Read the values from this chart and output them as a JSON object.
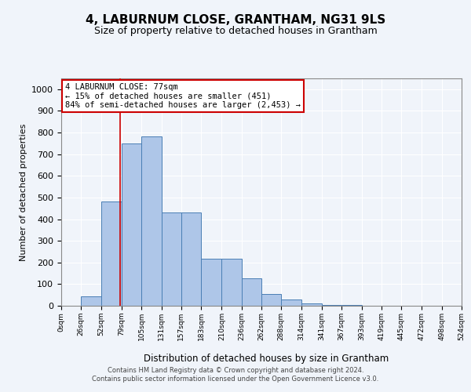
{
  "title": "4, LABURNUM CLOSE, GRANTHAM, NG31 9LS",
  "subtitle": "Size of property relative to detached houses in Grantham",
  "xlabel": "Distribution of detached houses by size in Grantham",
  "ylabel": "Number of detached properties",
  "bin_labels": [
    "0sqm",
    "26sqm",
    "52sqm",
    "79sqm",
    "105sqm",
    "131sqm",
    "157sqm",
    "183sqm",
    "210sqm",
    "236sqm",
    "262sqm",
    "288sqm",
    "314sqm",
    "341sqm",
    "367sqm",
    "393sqm",
    "419sqm",
    "445sqm",
    "472sqm",
    "498sqm",
    "524sqm"
  ],
  "bin_edges": [
    0,
    26,
    52,
    79,
    105,
    131,
    157,
    183,
    210,
    236,
    262,
    288,
    314,
    341,
    367,
    393,
    419,
    445,
    472,
    498,
    524
  ],
  "bar_heights": [
    0,
    42,
    483,
    750,
    783,
    430,
    430,
    217,
    217,
    127,
    55,
    28,
    10,
    5,
    2,
    1,
    0,
    0,
    0,
    0
  ],
  "bar_color": "#aec6e8",
  "bar_edge_color": "#4a7fb5",
  "property_line_x": 77,
  "ylim": [
    0,
    1050
  ],
  "yticks": [
    0,
    100,
    200,
    300,
    400,
    500,
    600,
    700,
    800,
    900,
    1000
  ],
  "annotation_text": "4 LABURNUM CLOSE: 77sqm\n← 15% of detached houses are smaller (451)\n84% of semi-detached houses are larger (2,453) →",
  "annotation_box_color": "#ffffff",
  "annotation_box_edge": "#cc0000",
  "background_color": "#f0f4fa",
  "grid_color": "#ffffff",
  "footer_line1": "Contains HM Land Registry data © Crown copyright and database right 2024.",
  "footer_line2": "Contains public sector information licensed under the Open Government Licence v3.0."
}
